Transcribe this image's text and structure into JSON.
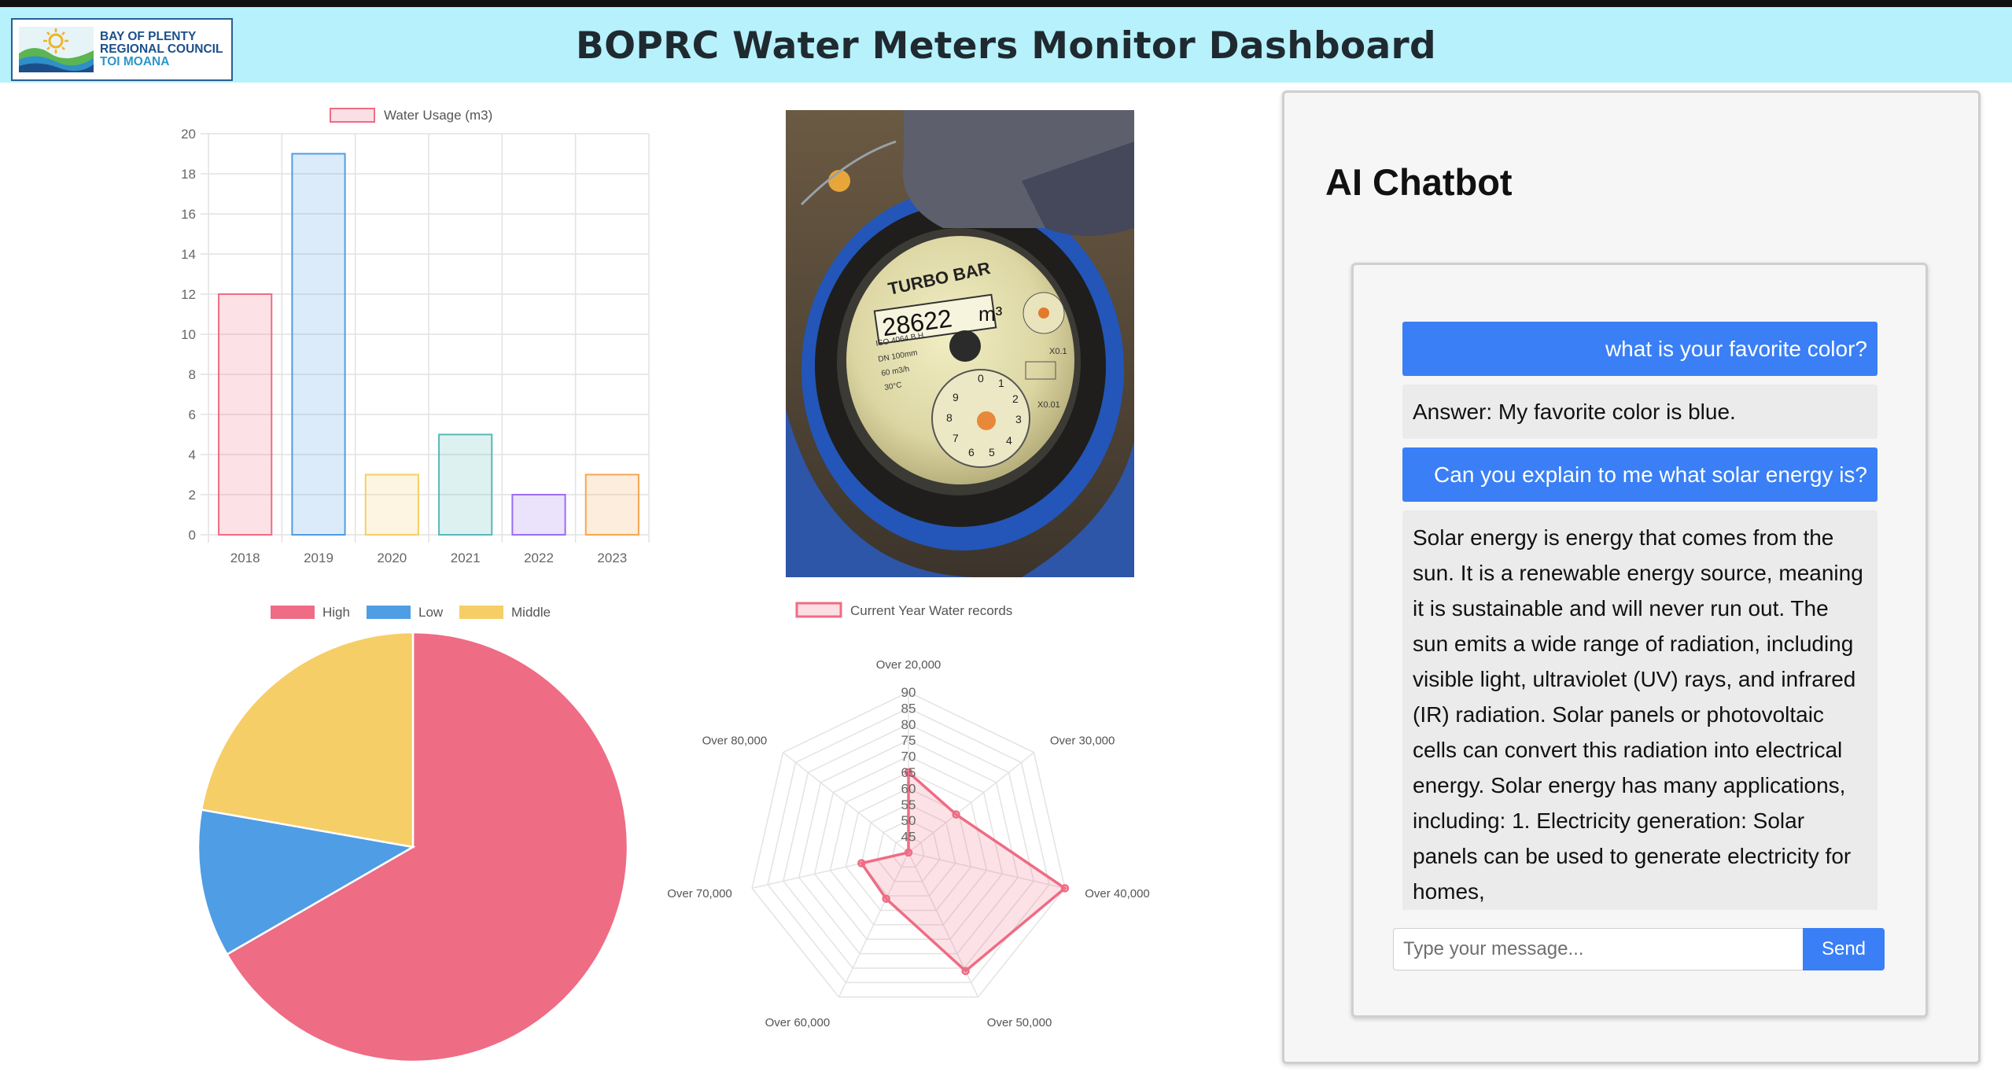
{
  "header": {
    "title": "BOPRC Water Meters Monitor Dashboard",
    "logo": {
      "line1": "BAY OF PLENTY",
      "line2": "REGIONAL COUNCIL",
      "line3": "TOI MOANA"
    }
  },
  "colors": {
    "header_bg": "#b7f1fb",
    "red": "#ee6c84",
    "blue": "#4f9de4",
    "yellow": "#f6ce67",
    "teal": "#59b8b8",
    "purple": "#9a6ef2",
    "orange": "#f4a752",
    "chat_blue": "#3a7ff5"
  },
  "chart_data": [
    {
      "type": "bar",
      "legend": [
        "Water Usage (m3)"
      ],
      "categories": [
        "2018",
        "2019",
        "2020",
        "2021",
        "2022",
        "2023"
      ],
      "series": [
        {
          "name": "Water Usage (m3)",
          "values": [
            12,
            19,
            3,
            5,
            2,
            3
          ]
        }
      ],
      "ylim": [
        0,
        20
      ],
      "yticks": [
        "0",
        "2",
        "4",
        "6",
        "8",
        "10",
        "12",
        "14",
        "16",
        "18",
        "20"
      ],
      "grid": true,
      "legend_position": "top"
    },
    {
      "type": "pie",
      "legend": [
        "High",
        "Low",
        "Middle"
      ],
      "values": [
        300,
        50,
        100
      ],
      "legend_position": "top"
    },
    {
      "type": "radar",
      "legend": [
        "Current Year Water records"
      ],
      "categories": [
        "Over 20,000",
        "Over 30,000",
        "Over 40,000",
        "Over 50,000",
        "Over 60,000",
        "Over 70,000",
        "Over 80,000"
      ],
      "series": [
        {
          "name": "Current Year Water records",
          "values": [
            65,
            59,
            90,
            81,
            56,
            55,
            40
          ]
        }
      ],
      "r_range": [
        40,
        90
      ],
      "rticks": [
        "45",
        "50",
        "55",
        "60",
        "65",
        "70",
        "75",
        "80",
        "85",
        "90"
      ],
      "legend_position": "top"
    }
  ],
  "chat": {
    "title": "AI Chatbot",
    "messages": [
      {
        "role": "user",
        "text": "what is your favorite color?"
      },
      {
        "role": "bot",
        "text": "Answer: My favorite color is blue."
      },
      {
        "role": "user",
        "text": "Can you explain to me what solar energy is?"
      },
      {
        "role": "bot",
        "text": "Solar energy is energy that comes from the sun. It is a renewable energy source, meaning it is sustainable and will never run out. The sun emits a wide range of radiation, including visible light, ultraviolet (UV) rays, and infrared (IR) radiation. Solar panels or photovoltaic cells can convert this radiation into electrical energy. Solar energy has many applications, including: 1. Electricity generation: Solar panels can be used to generate electricity for homes,"
      }
    ],
    "input_placeholder": "Type your message...",
    "send_label": "Send"
  },
  "photo": {
    "brand": "TURBO BAR",
    "reading": "28622",
    "unit": "m3",
    "spec_lines": [
      "ISO 4064 B.H",
      "DN 100mm",
      "60 m3/h",
      "30°C"
    ],
    "dial_labels": [
      "X0.1",
      "X0.01"
    ]
  }
}
